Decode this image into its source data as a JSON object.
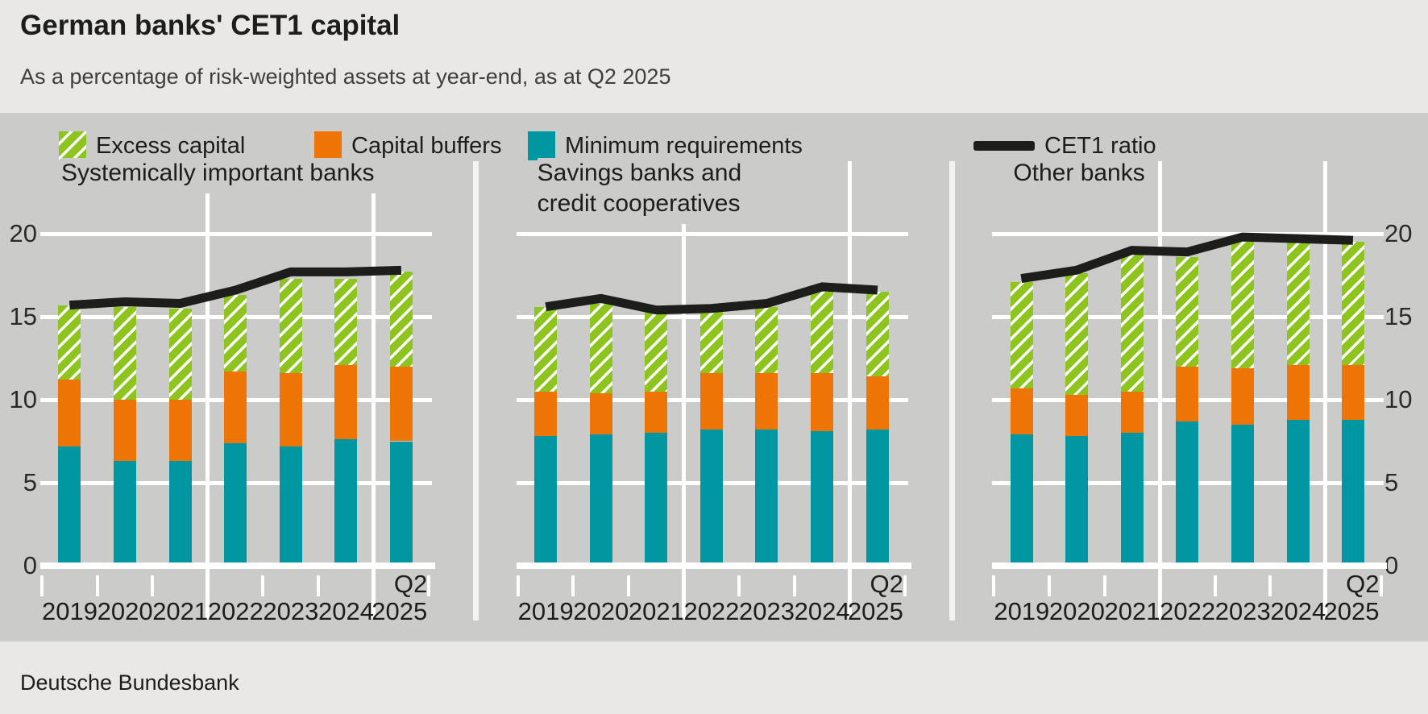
{
  "header": {
    "title": "German banks' CET1 capital",
    "subtitle": "As a percentage of risk-weighted assets at year-end, as at Q2 2025"
  },
  "legend": {
    "items": [
      {
        "label": "Excess capital",
        "swatch": "hatched-green"
      },
      {
        "label": "Capital buffers",
        "swatch": "solid-orange"
      },
      {
        "label": "Minimum requirements",
        "swatch": "solid-teal"
      },
      {
        "label": "CET1 ratio",
        "swatch": "black-line"
      }
    ]
  },
  "footer": {
    "source": "Deutsche Bundesbank"
  },
  "colors": {
    "excess_green": "#8dc41e",
    "buffers_orange": "#ee7405",
    "minimum_teal": "#0097a3",
    "cet1_line_black": "#1d1d1b",
    "chart_background_grey": "#cbcbc9",
    "page_background_grey": "#e9e8e6",
    "gridline_white": "#ffffff"
  },
  "chart_data": {
    "type": "bar",
    "subtype": "stacked-bars-with-line",
    "categories": [
      "2019",
      "2020",
      "2021",
      "2022",
      "2023",
      "2024",
      "2025"
    ],
    "last_category_prefix": "Q2",
    "y_axis": {
      "ticks": [
        0,
        5,
        10,
        15,
        20
      ],
      "ylim": [
        0,
        22
      ],
      "grid": true
    },
    "legend_position": "top",
    "panels": [
      {
        "title_lines": [
          "Systemically important banks"
        ],
        "axis_labels_side": "left",
        "series": [
          {
            "name": "Minimum requirements",
            "values": [
              7.2,
              6.3,
              6.3,
              7.4,
              7.2,
              7.6,
              7.5
            ]
          },
          {
            "name": "Capital buffers",
            "values": [
              4.0,
              3.7,
              3.7,
              4.3,
              4.4,
              4.5,
              4.5
            ]
          },
          {
            "name": "Excess capital",
            "values": [
              4.5,
              5.6,
              5.5,
              4.6,
              5.7,
              5.2,
              5.7
            ]
          }
        ],
        "line": {
          "name": "CET1 ratio",
          "values": [
            15.7,
            15.9,
            15.8,
            16.6,
            17.7,
            17.7,
            17.8
          ]
        }
      },
      {
        "title_lines": [
          "Savings banks and",
          "credit cooperatives"
        ],
        "axis_labels_side": "none",
        "series": [
          {
            "name": "Minimum requirements",
            "values": [
              7.8,
              7.9,
              8.0,
              8.2,
              8.2,
              8.1,
              8.2
            ]
          },
          {
            "name": "Capital buffers",
            "values": [
              2.7,
              2.5,
              2.5,
              3.4,
              3.4,
              3.5,
              3.2
            ]
          },
          {
            "name": "Excess capital",
            "values": [
              5.1,
              5.4,
              4.8,
              3.7,
              4.0,
              4.9,
              5.1
            ]
          }
        ],
        "line": {
          "name": "CET1 ratio",
          "values": [
            15.6,
            16.1,
            15.4,
            15.5,
            15.8,
            16.8,
            16.6
          ]
        }
      },
      {
        "title_lines": [
          "Other banks"
        ],
        "axis_labels_side": "right",
        "series": [
          {
            "name": "Minimum requirements",
            "values": [
              7.9,
              7.8,
              8.0,
              8.7,
              8.5,
              8.8,
              8.8
            ]
          },
          {
            "name": "Capital buffers",
            "values": [
              2.8,
              2.5,
              2.5,
              3.3,
              3.4,
              3.3,
              3.3
            ]
          },
          {
            "name": "Excess capital",
            "values": [
              6.4,
              7.3,
              8.3,
              6.6,
              7.6,
              7.4,
              7.4
            ]
          }
        ],
        "line": {
          "name": "CET1 ratio",
          "values": [
            17.3,
            17.8,
            19.0,
            18.9,
            19.8,
            19.7,
            19.6
          ]
        }
      }
    ]
  }
}
